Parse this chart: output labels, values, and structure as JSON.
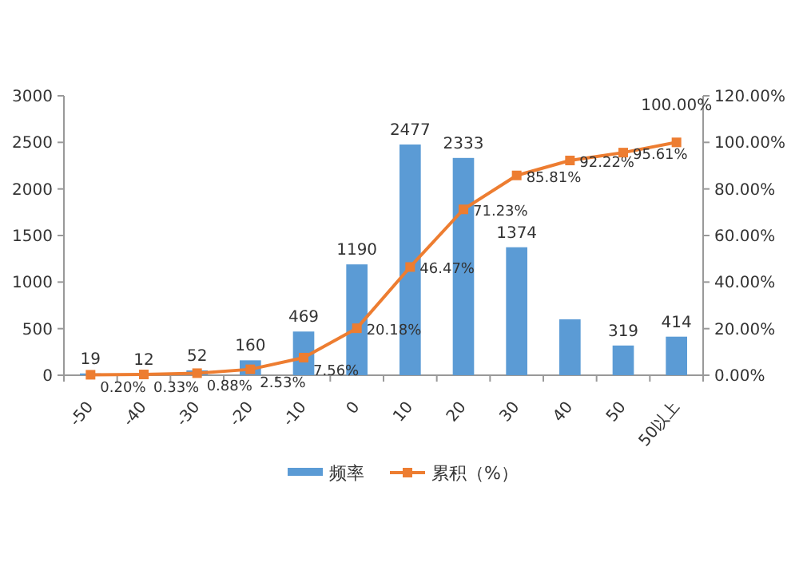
{
  "chart_data": {
    "type": "bar",
    "categories": [
      "-50",
      "-40",
      "-30",
      "-20",
      "-10",
      "0",
      "10",
      "20",
      "30",
      "40",
      "50",
      "50以上"
    ],
    "series": [
      {
        "name": "频率",
        "color": "#5b9bd5",
        "values": [
          19,
          12,
          52,
          160,
          469,
          1190,
          2477,
          2333,
          1374,
          600,
          319,
          414
        ],
        "value_labels": [
          "19",
          "12",
          "52",
          "160",
          "469",
          "1190",
          "2477",
          "2333",
          "1374",
          null,
          "319",
          "414"
        ]
      },
      {
        "name": "累积（%）",
        "type": "line",
        "axis": "y2",
        "color": "#ed7d31",
        "values": [
          0.2,
          0.33,
          0.88,
          2.53,
          7.56,
          20.18,
          46.47,
          71.23,
          85.81,
          92.22,
          95.61,
          100
        ],
        "value_labels": [
          "0.20%",
          "0.33%",
          "0.88%",
          "2.53%",
          "7.56%",
          "20.18%",
          "46.47%",
          "71.23%",
          "85.81%",
          "92.22%",
          "95.61%",
          "100.00%"
        ]
      }
    ],
    "ylim": [
      0,
      3000
    ],
    "yticks": [
      0,
      500,
      1000,
      1500,
      2000,
      2500,
      3000
    ],
    "y2lim": [
      0,
      120
    ],
    "y2ticks": [
      {
        "value": 0,
        "label": "0.00%"
      },
      {
        "value": 20,
        "label": "20.00%"
      },
      {
        "value": 40,
        "label": "40.00%"
      },
      {
        "value": 60,
        "label": "60.00%"
      },
      {
        "value": 80,
        "label": "80.00%"
      },
      {
        "value": 100,
        "label": "100.00%"
      },
      {
        "value": 120,
        "label": "120.00%"
      }
    ],
    "marker": "square",
    "legend": "bottom",
    "grid": false
  }
}
